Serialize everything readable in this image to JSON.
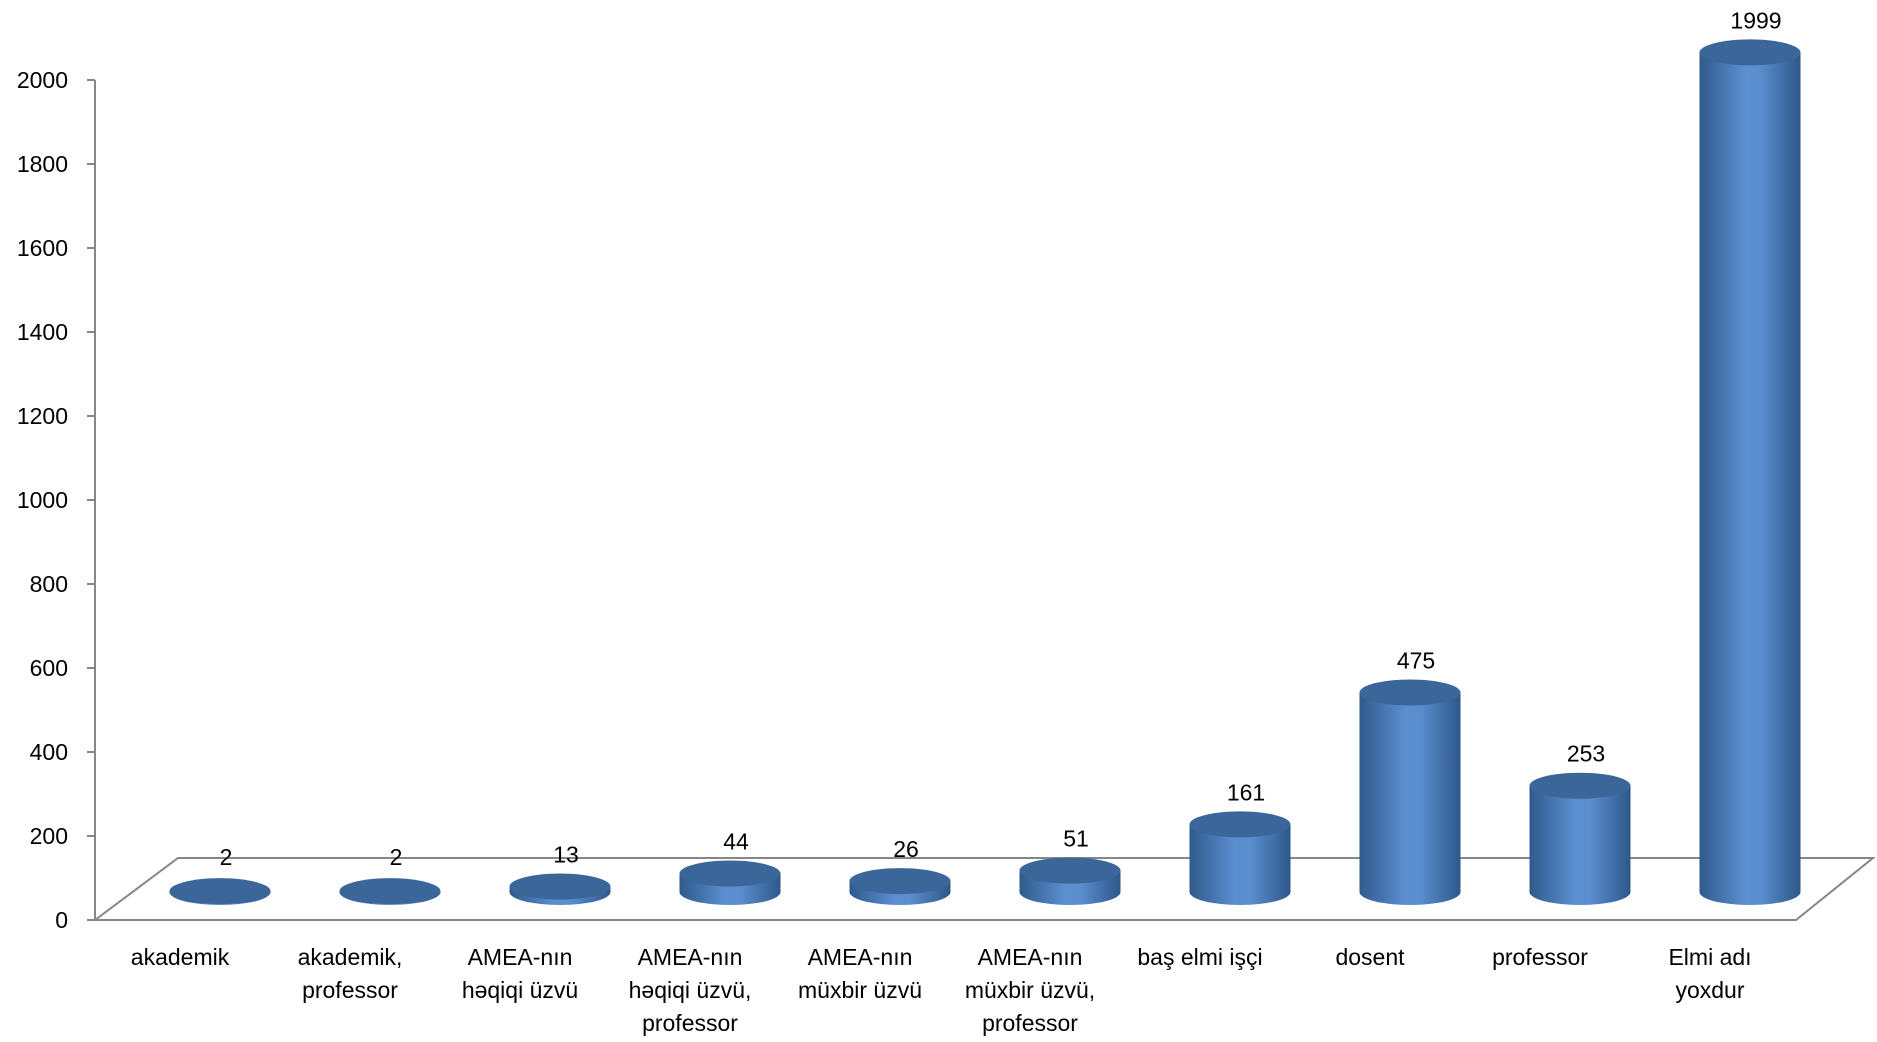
{
  "chart_data": {
    "type": "bar",
    "style": "3d-cylinder",
    "categories": [
      [
        "akademik"
      ],
      [
        "akademik,",
        "professor"
      ],
      [
        "AMEA-nın",
        "həqiqi üzvü"
      ],
      [
        "AMEA-nın",
        "həqiqi üzvü,",
        "professor"
      ],
      [
        "AMEA-nın",
        "müxbir üzvü"
      ],
      [
        "AMEA-nın",
        "müxbir üzvü,",
        "professor"
      ],
      [
        "baş elmi işçi"
      ],
      [
        "dosent"
      ],
      [
        "professor"
      ],
      [
        "Elmi adı",
        "yoxdur"
      ]
    ],
    "values": [
      2,
      2,
      13,
      44,
      26,
      51,
      161,
      475,
      253,
      1999
    ],
    "yticks": [
      0,
      200,
      400,
      600,
      800,
      1000,
      1200,
      1400,
      1600,
      1800,
      2000
    ],
    "ylim": [
      0,
      2000
    ],
    "title": "",
    "xlabel": "",
    "ylabel": "",
    "grid": false,
    "legend": "none",
    "colors": {
      "bar_body": "#4a7ebb",
      "bar_top": "#3a6699",
      "axis": "#868686"
    }
  }
}
